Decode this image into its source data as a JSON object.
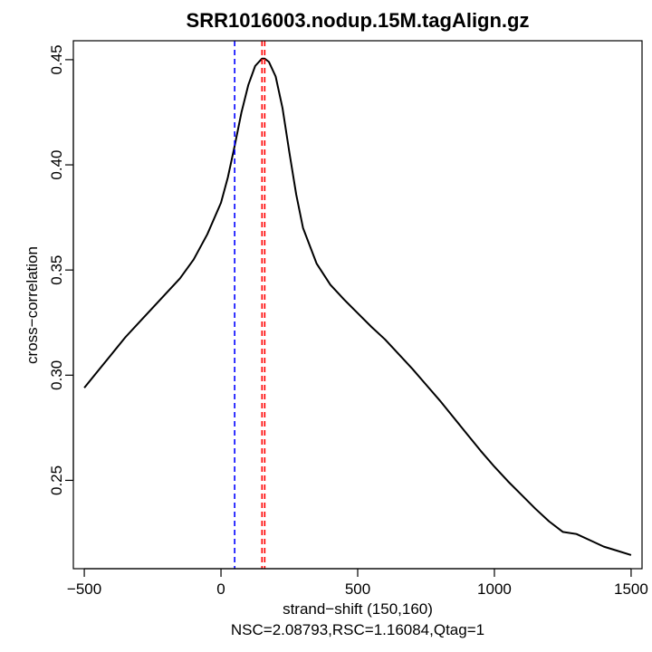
{
  "chart_data": {
    "type": "line",
    "title": "SRR1016003.nodup.15M.tagAlign.gz",
    "xlabel": "strand−shift (150,160)",
    "sublabel": "NSC=2.08793,RSC=1.16084,Qtag=1",
    "ylabel": "cross−correlation",
    "xlim": [
      -540,
      1540
    ],
    "ylim": [
      0.208,
      0.459
    ],
    "xticks": [
      -500,
      0,
      500,
      1000,
      1500
    ],
    "xtick_labels": [
      "−500",
      "0",
      "500",
      "1000",
      "1500"
    ],
    "yticks": [
      0.25,
      0.3,
      0.35,
      0.4,
      0.45
    ],
    "ytick_labels": [
      "0.25",
      "0.30",
      "0.35",
      "0.40",
      "0.45"
    ],
    "grid": false,
    "series": [
      {
        "color": "#000000",
        "x": [
          -500,
          -450,
          -400,
          -350,
          -300,
          -250,
          -200,
          -150,
          -100,
          -50,
          0,
          25,
          50,
          75,
          100,
          125,
          150,
          160,
          175,
          200,
          225,
          250,
          275,
          300,
          350,
          400,
          450,
          500,
          550,
          600,
          650,
          700,
          750,
          800,
          850,
          900,
          950,
          1000,
          1050,
          1100,
          1150,
          1200,
          1250,
          1300,
          1350,
          1400,
          1450,
          1500
        ],
        "y": [
          0.294,
          0.302,
          0.31,
          0.318,
          0.325,
          0.332,
          0.339,
          0.346,
          0.355,
          0.367,
          0.382,
          0.394,
          0.409,
          0.425,
          0.438,
          0.447,
          0.4505,
          0.4505,
          0.449,
          0.442,
          0.427,
          0.406,
          0.386,
          0.37,
          0.353,
          0.343,
          0.336,
          0.3295,
          0.323,
          0.317,
          0.31,
          0.303,
          0.2955,
          0.288,
          0.28,
          0.272,
          0.264,
          0.2565,
          0.2495,
          0.243,
          0.2365,
          0.2305,
          0.2255,
          0.2245,
          0.2215,
          0.2185,
          0.2165,
          0.2145
        ]
      }
    ],
    "vlines": [
      {
        "x": 50,
        "color": "#0000ff",
        "style": "dashed"
      },
      {
        "x": 150,
        "color": "#ff0000",
        "style": "dashed"
      },
      {
        "x": 160,
        "color": "#ff0000",
        "style": "dashed"
      }
    ]
  }
}
